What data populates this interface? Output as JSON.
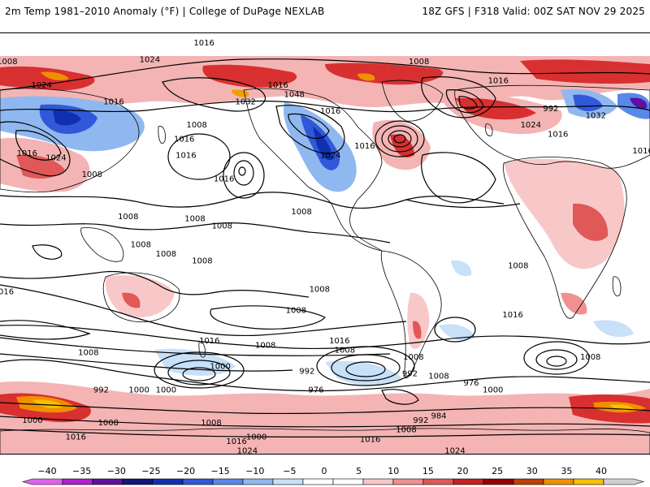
{
  "header": {
    "left_title": "2m Temp 1981–2010 Anomaly (°F) | College of DuPage NEXLAB",
    "right_title": "18Z GFS | F318 Valid: 00Z SAT NOV 29 2025"
  },
  "colorbar": {
    "labels": [
      "−40",
      "−35",
      "−30",
      "−25",
      "−20",
      "−15",
      "−10",
      "−5",
      "0",
      "5",
      "10",
      "15",
      "20",
      "25",
      "30",
      "35",
      "40"
    ],
    "colors": [
      "#e060f0",
      "#b020d0",
      "#6010a0",
      "#101878",
      "#1030b0",
      "#3058d8",
      "#5888e8",
      "#90b8f0",
      "#c8e0f8",
      "#ffffff",
      "#ffffff",
      "#f8c8c8",
      "#f09090",
      "#e05858",
      "#c82020",
      "#980000",
      "#c04000",
      "#f09000",
      "#f8c000",
      "#d0d0d0"
    ]
  },
  "contour_labels": [
    {
      "text": "1016",
      "lon": -167,
      "lat": 86
    },
    {
      "text": "1008",
      "lon": 84,
      "lat": 78
    },
    {
      "text": "1024",
      "lon": 103,
      "lat": 68
    },
    {
      "text": "1016",
      "lon": -126,
      "lat": 68
    },
    {
      "text": "1032",
      "lon": -144,
      "lat": 61
    },
    {
      "text": "1048",
      "lon": -117,
      "lat": 64
    },
    {
      "text": "1008",
      "lon": -48,
      "lat": 78
    },
    {
      "text": "1016",
      "lon": -4,
      "lat": 70
    },
    {
      "text": "992",
      "lon": 25,
      "lat": 58
    },
    {
      "text": "1024",
      "lon": 163,
      "lat": 79
    },
    {
      "text": "1016",
      "lon": 143,
      "lat": 61
    },
    {
      "text": "1032",
      "lon": 50,
      "lat": 55
    },
    {
      "text": "1024",
      "lon": 14,
      "lat": 51
    },
    {
      "text": "1016",
      "lon": 29,
      "lat": 47
    },
    {
      "text": "1016",
      "lon": 76,
      "lat": 40
    },
    {
      "text": "1016",
      "lon": 95,
      "lat": 39
    },
    {
      "text": "1024",
      "lon": 111,
      "lat": 37
    },
    {
      "text": "1008",
      "lon": 131,
      "lat": 30
    },
    {
      "text": "1016",
      "lon": -97,
      "lat": 57
    },
    {
      "text": "1016",
      "lon": -156,
      "lat": 28
    },
    {
      "text": "1024",
      "lon": -97,
      "lat": 38
    },
    {
      "text": "1016",
      "lon": -78,
      "lat": 42
    },
    {
      "text": "1008",
      "lon": -171,
      "lat": 51
    },
    {
      "text": "1016",
      "lon": -177,
      "lat": 38
    },
    {
      "text": "1016",
      "lon": -178,
      "lat": 45
    },
    {
      "text": "1008",
      "lon": -157,
      "lat": 8
    },
    {
      "text": "1008",
      "lon": -172,
      "lat": 11
    },
    {
      "text": "1008",
      "lon": -113,
      "lat": 14
    },
    {
      "text": "1008",
      "lon": -168,
      "lat": -7
    },
    {
      "text": "1008",
      "lon": -103,
      "lat": -19
    },
    {
      "text": "1008",
      "lon": -89,
      "lat": -45
    },
    {
      "text": "1008",
      "lon": -116,
      "lat": -28
    },
    {
      "text": "1016",
      "lon": -92,
      "lat": -41
    },
    {
      "text": "1016",
      "lon": -164,
      "lat": -41
    },
    {
      "text": "1008",
      "lon": -133,
      "lat": -43
    },
    {
      "text": "1000",
      "lon": -158,
      "lat": -52
    },
    {
      "text": "992",
      "lon": -110,
      "lat": -54
    },
    {
      "text": "976",
      "lon": -105,
      "lat": -62
    },
    {
      "text": "992",
      "lon": -53,
      "lat": -55
    },
    {
      "text": "1008",
      "lon": -51,
      "lat": -48
    },
    {
      "text": "976",
      "lon": -19,
      "lat": -59
    },
    {
      "text": "1008",
      "lon": -37,
      "lat": -56
    },
    {
      "text": "1000",
      "lon": -7,
      "lat": -62
    },
    {
      "text": "992",
      "lon": -47,
      "lat": -75
    },
    {
      "text": "984",
      "lon": -37,
      "lat": -73
    },
    {
      "text": "1008",
      "lon": -55,
      "lat": -79
    },
    {
      "text": "1008",
      "lon": -163,
      "lat": -76
    },
    {
      "text": "1000",
      "lon": -138,
      "lat": -82
    },
    {
      "text": "1016",
      "lon": -149,
      "lat": -84
    },
    {
      "text": "1016",
      "lon": -75,
      "lat": -83
    },
    {
      "text": "1024",
      "lon": -143,
      "lat": -88
    },
    {
      "text": "1024",
      "lon": -28,
      "lat": -88
    },
    {
      "text": "1016",
      "lon": 122,
      "lat": -82
    },
    {
      "text": "1000",
      "lon": 98,
      "lat": -75
    },
    {
      "text": "1008",
      "lon": 140,
      "lat": -76
    },
    {
      "text": "1008",
      "lon": 129,
      "lat": -46
    },
    {
      "text": "992",
      "lon": 136,
      "lat": -62
    },
    {
      "text": "1000",
      "lon": 172,
      "lat": -62
    },
    {
      "text": "1008",
      "lon": 47,
      "lat": -48
    },
    {
      "text": "1016",
      "lon": 82,
      "lat": -20
    },
    {
      "text": "1016",
      "lon": 4,
      "lat": -30
    },
    {
      "text": "1000",
      "lon": 157,
      "lat": -62
    },
    {
      "text": "1008",
      "lon": 151,
      "lat": 12
    },
    {
      "text": "1008",
      "lon": 158,
      "lat": 0
    },
    {
      "text": "1008",
      "lon": 172,
      "lat": -4
    },
    {
      "text": "1008",
      "lon": 7,
      "lat": -9
    }
  ]
}
